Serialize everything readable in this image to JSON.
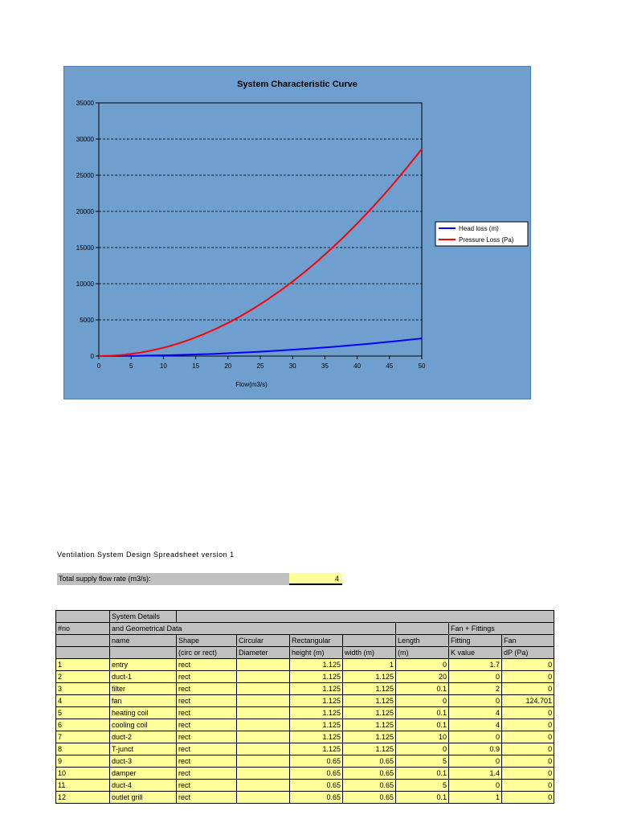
{
  "chart_data": {
    "type": "line",
    "title": "System Characteristic Curve",
    "xlabel": "Flow(m3/s)",
    "ylabel": "",
    "xlim": [
      0,
      50
    ],
    "ylim": [
      0,
      35000
    ],
    "x_ticks": [
      "0",
      "5",
      "10",
      "15",
      "20",
      "25",
      "30",
      "35",
      "40",
      "45",
      "50"
    ],
    "y_ticks": [
      "0",
      "5000",
      "10000",
      "15000",
      "20000",
      "25000",
      "30000",
      "35000"
    ],
    "grid": "horizontal dashed",
    "legend_position": "right",
    "x": [
      0,
      2,
      4,
      6,
      8,
      10,
      12,
      14,
      16,
      18,
      20,
      22,
      24,
      26,
      28,
      30,
      32,
      34,
      36,
      38,
      40,
      42,
      44,
      46,
      48,
      50
    ],
    "series": [
      {
        "name": "Head loss (m)",
        "color": "#0000ff",
        "values": [
          0,
          4,
          16,
          35,
          62,
          97,
          140,
          191,
          249,
          315,
          389,
          471,
          560,
          658,
          763,
          876,
          996,
          1125,
          1261,
          1405,
          1557,
          1716,
          1884,
          2059,
          2242,
          2433
        ]
      },
      {
        "name": "Pressure Loss (Pa)",
        "color": "#ff0000",
        "values": [
          0,
          46,
          183,
          412,
          733,
          1145,
          1649,
          2244,
          2931,
          3710,
          4580,
          5541,
          6595,
          7740,
          8976,
          10304,
          11724,
          13235,
          14838,
          16532,
          18318,
          20195,
          22164,
          24225,
          26377,
          28620
        ]
      }
    ]
  },
  "sheet": {
    "title": "Ventilation System Design Spreadsheet version 1",
    "flow_label": "Total supply flow rate (m3/s):",
    "flow_value": "4"
  },
  "table": {
    "header1": {
      "c2": "System Details"
    },
    "header2": {
      "c1": "#no",
      "c2": "and Geometrical Data",
      "c8": "Fan + Fittings"
    },
    "header3": {
      "c2": "name",
      "c3": "Shape",
      "c4": "Circular",
      "c5": "Rectangular",
      "c7": "Length",
      "c8": "Fitting",
      "c9": "Fan"
    },
    "header4": {
      "c3": "(circ or rect)",
      "c4": "Diameter",
      "c5": "height (m)",
      "c6": "width (m)",
      "c7": "(m)",
      "c8": "K value",
      "c9": "dP (Pa)"
    },
    "rows": [
      {
        "no": "1",
        "name": "entry",
        "shape": "rect",
        "diameter": "",
        "height": "1.125",
        "width": "1",
        "length": "0",
        "k": "1.7",
        "dp": "0"
      },
      {
        "no": "2",
        "name": "duct-1",
        "shape": "rect",
        "diameter": "",
        "height": "1.125",
        "width": "1.125",
        "length": "20",
        "k": "0",
        "dp": "0"
      },
      {
        "no": "3",
        "name": "filter",
        "shape": "rect",
        "diameter": "",
        "height": "1.125",
        "width": "1.125",
        "length": "0.1",
        "k": "2",
        "dp": "0"
      },
      {
        "no": "4",
        "name": "fan",
        "shape": "rect",
        "diameter": "",
        "height": "1.125",
        "width": "1.125",
        "length": "0",
        "k": "0",
        "dp": "124.701"
      },
      {
        "no": "5",
        "name": "heating coil",
        "shape": "rect",
        "diameter": "",
        "height": "1.125",
        "width": "1.125",
        "length": "0.1",
        "k": "4",
        "dp": "0"
      },
      {
        "no": "6",
        "name": "cooling coil",
        "shape": "rect",
        "diameter": "",
        "height": "1.125",
        "width": "1.125",
        "length": "0.1",
        "k": "4",
        "dp": "0"
      },
      {
        "no": "7",
        "name": "duct-2",
        "shape": "rect",
        "diameter": "",
        "height": "1.125",
        "width": "1.125",
        "length": "10",
        "k": "0",
        "dp": "0"
      },
      {
        "no": "8",
        "name": "T-junct",
        "shape": "rect",
        "diameter": "",
        "height": "1.125",
        "width": "1.125",
        "length": "0",
        "k": "0.9",
        "dp": "0"
      },
      {
        "no": "9",
        "name": "duct-3",
        "shape": "rect",
        "diameter": "",
        "height": "0.65",
        "width": "0.65",
        "length": "5",
        "k": "0",
        "dp": "0"
      },
      {
        "no": "10",
        "name": "damper",
        "shape": "rect",
        "diameter": "",
        "height": "0.65",
        "width": "0.65",
        "length": "0.1",
        "k": "1.4",
        "dp": "0"
      },
      {
        "no": "11",
        "name": "duct-4",
        "shape": "rect",
        "diameter": "",
        "height": "0.65",
        "width": "0.65",
        "length": "5",
        "k": "0",
        "dp": "0"
      },
      {
        "no": "12",
        "name": "outlet grill",
        "shape": "rect",
        "diameter": "",
        "height": "0.65",
        "width": "0.65",
        "length": "0.1",
        "k": "1",
        "dp": "0"
      }
    ]
  }
}
